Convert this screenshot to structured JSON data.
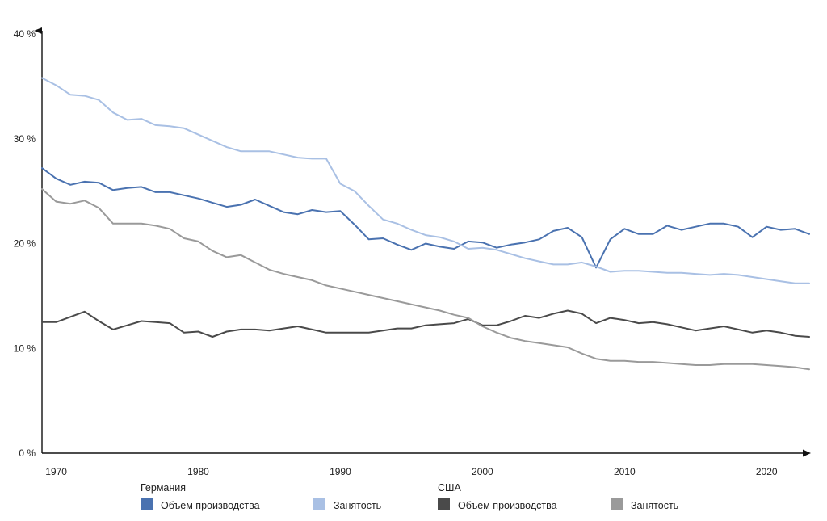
{
  "chart_data": {
    "type": "line",
    "title": "",
    "xlabel": "",
    "ylabel": "",
    "xlim": [
      1969,
      2023
    ],
    "ylim": [
      0,
      40
    ],
    "y_ticks": [
      {
        "value": 0,
        "label": "0 %"
      },
      {
        "value": 10,
        "label": "10 %"
      },
      {
        "value": 20,
        "label": "20 %"
      },
      {
        "value": 30,
        "label": "30 %"
      },
      {
        "value": 40,
        "label": "40 %"
      }
    ],
    "x_ticks": [
      {
        "value": 1970,
        "label": "1970"
      },
      {
        "value": 1980,
        "label": "1980"
      },
      {
        "value": 1990,
        "label": "1990"
      },
      {
        "value": 2000,
        "label": "2000"
      },
      {
        "value": 2010,
        "label": "2010"
      },
      {
        "value": 2020,
        "label": "2020"
      }
    ],
    "grid": false,
    "legend_position": "bottom",
    "legend_groups": [
      {
        "title": "Германия",
        "series_indices": [
          0,
          1
        ]
      },
      {
        "title": "США",
        "series_indices": [
          2,
          3
        ]
      }
    ],
    "series": [
      {
        "name": "Объем производства",
        "group": "Германия",
        "color": "#4a72b0",
        "x": [
          1969,
          1970,
          1971,
          1972,
          1973,
          1974,
          1975,
          1976,
          1977,
          1978,
          1979,
          1980,
          1981,
          1982,
          1983,
          1984,
          1985,
          1986,
          1987,
          1988,
          1989,
          1990,
          1991,
          1992,
          1993,
          1994,
          1995,
          1996,
          1997,
          1998,
          1999,
          2000,
          2001,
          2002,
          2003,
          2004,
          2005,
          2006,
          2007,
          2008,
          2009,
          2010,
          2011,
          2012,
          2013,
          2014,
          2015,
          2016,
          2017,
          2018,
          2019,
          2020,
          2021,
          2022,
          2023
        ],
        "values": [
          27.2,
          26.2,
          25.6,
          25.9,
          25.8,
          25.1,
          25.3,
          25.4,
          24.9,
          24.9,
          24.6,
          24.3,
          23.9,
          23.5,
          23.7,
          24.2,
          23.6,
          23.0,
          22.8,
          23.2,
          23.0,
          23.1,
          21.8,
          20.4,
          20.5,
          19.9,
          19.4,
          20.0,
          19.7,
          19.5,
          20.2,
          20.1,
          19.6,
          19.9,
          20.1,
          20.4,
          21.2,
          21.5,
          20.6,
          17.7,
          20.4,
          21.4,
          20.9,
          20.9,
          21.7,
          21.3,
          21.6,
          21.9,
          21.9,
          21.6,
          20.6,
          21.6,
          21.3,
          21.4,
          20.9
        ]
      },
      {
        "name": "Занятость",
        "group": "Германия",
        "color": "#a9c0e4",
        "x": [
          1969,
          1970,
          1971,
          1972,
          1973,
          1974,
          1975,
          1976,
          1977,
          1978,
          1979,
          1980,
          1981,
          1982,
          1983,
          1984,
          1985,
          1986,
          1987,
          1988,
          1989,
          1990,
          1991,
          1992,
          1993,
          1994,
          1995,
          1996,
          1997,
          1998,
          1999,
          2000,
          2001,
          2002,
          2003,
          2004,
          2005,
          2006,
          2007,
          2008,
          2009,
          2010,
          2011,
          2012,
          2013,
          2014,
          2015,
          2016,
          2017,
          2018,
          2019,
          2020,
          2021,
          2022,
          2023
        ],
        "values": [
          35.8,
          35.1,
          34.2,
          34.1,
          33.7,
          32.5,
          31.8,
          31.9,
          31.3,
          31.2,
          31.0,
          30.4,
          29.8,
          29.2,
          28.8,
          28.8,
          28.8,
          28.5,
          28.2,
          28.1,
          28.1,
          25.7,
          25.0,
          23.6,
          22.3,
          21.9,
          21.3,
          20.8,
          20.6,
          20.2,
          19.5,
          19.6,
          19.4,
          19.0,
          18.6,
          18.3,
          18.0,
          18.0,
          18.2,
          17.8,
          17.3,
          17.4,
          17.4,
          17.3,
          17.2,
          17.2,
          17.1,
          17.0,
          17.1,
          17.0,
          16.8,
          16.6,
          16.4,
          16.2,
          16.2
        ]
      },
      {
        "name": "Объем производства",
        "group": "США",
        "color": "#4a4a4a",
        "x": [
          1969,
          1970,
          1971,
          1972,
          1973,
          1974,
          1975,
          1976,
          1977,
          1978,
          1979,
          1980,
          1981,
          1982,
          1983,
          1984,
          1985,
          1986,
          1987,
          1988,
          1989,
          1990,
          1991,
          1992,
          1993,
          1994,
          1995,
          1996,
          1997,
          1998,
          1999,
          2000,
          2001,
          2002,
          2003,
          2004,
          2005,
          2006,
          2007,
          2008,
          2009,
          2010,
          2011,
          2012,
          2013,
          2014,
          2015,
          2016,
          2017,
          2018,
          2019,
          2020,
          2021,
          2022,
          2023
        ],
        "values": [
          12.5,
          12.5,
          13.0,
          13.5,
          12.6,
          11.8,
          12.2,
          12.6,
          12.5,
          12.4,
          11.5,
          11.6,
          11.1,
          11.6,
          11.8,
          11.8,
          11.7,
          11.9,
          12.1,
          11.8,
          11.5,
          11.5,
          11.5,
          11.5,
          11.7,
          11.9,
          11.9,
          12.2,
          12.3,
          12.4,
          12.8,
          12.2,
          12.2,
          12.6,
          13.1,
          12.9,
          13.3,
          13.6,
          13.3,
          12.4,
          12.9,
          12.7,
          12.4,
          12.5,
          12.3,
          12.0,
          11.7,
          11.9,
          12.1,
          11.8,
          11.5,
          11.7,
          11.5,
          11.2,
          11.1
        ]
      },
      {
        "name": "Занятость",
        "group": "США",
        "color": "#9a9a9a",
        "x": [
          1969,
          1970,
          1971,
          1972,
          1973,
          1974,
          1975,
          1976,
          1977,
          1978,
          1979,
          1980,
          1981,
          1982,
          1983,
          1984,
          1985,
          1986,
          1987,
          1988,
          1989,
          1990,
          1991,
          1992,
          1993,
          1994,
          1995,
          1996,
          1997,
          1998,
          1999,
          2000,
          2001,
          2002,
          2003,
          2004,
          2005,
          2006,
          2007,
          2008,
          2009,
          2010,
          2011,
          2012,
          2013,
          2014,
          2015,
          2016,
          2017,
          2018,
          2019,
          2020,
          2021,
          2022,
          2023
        ],
        "values": [
          25.2,
          24.0,
          23.8,
          24.1,
          23.4,
          21.9,
          21.9,
          21.9,
          21.7,
          21.4,
          20.5,
          20.2,
          19.3,
          18.7,
          18.9,
          18.2,
          17.5,
          17.1,
          16.8,
          16.5,
          16.0,
          15.7,
          15.4,
          15.1,
          14.8,
          14.5,
          14.2,
          13.9,
          13.6,
          13.2,
          12.9,
          12.1,
          11.5,
          11.0,
          10.7,
          10.5,
          10.3,
          10.1,
          9.5,
          9.0,
          8.8,
          8.8,
          8.7,
          8.7,
          8.6,
          8.5,
          8.4,
          8.4,
          8.5,
          8.5,
          8.5,
          8.4,
          8.3,
          8.2,
          8.0
        ]
      }
    ]
  }
}
